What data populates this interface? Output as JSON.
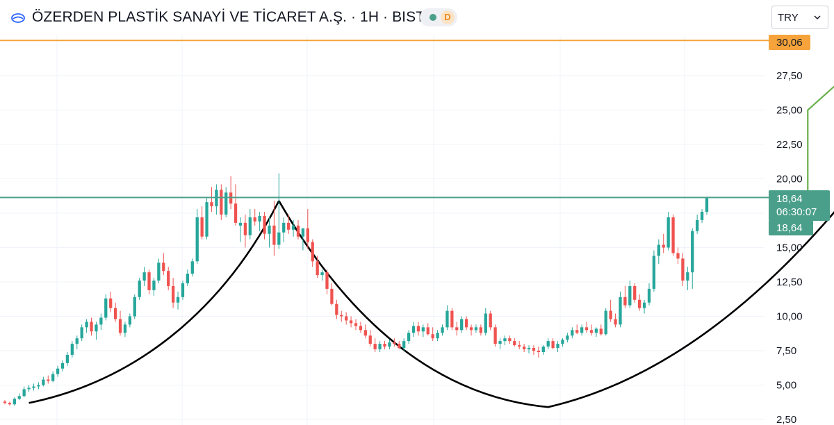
{
  "header": {
    "title": "ÖZERDEN PLASTİK SANAYİ VE TİCARET A.Ş. · 1H · BIST",
    "status_label": "D",
    "currency": "TRY"
  },
  "colors": {
    "up": "#26a69a",
    "down": "#ef5350",
    "resistance_line": "#4a9f8a",
    "target_line": "#f5a33a",
    "target_arrow": "#6ab04c",
    "pattern_curve": "#000000"
  },
  "chart_data": {
    "type": "candlestick",
    "ylim": [
      2.5,
      31.5
    ],
    "y_ticks": [
      "27,50",
      "25,00",
      "22,50",
      "20,00",
      "15,00",
      "12,50",
      "10,00",
      "7,50",
      "5,00",
      "2,50"
    ],
    "y_tick_values": [
      27.5,
      25.0,
      22.5,
      20.0,
      15.0,
      12.5,
      10.0,
      7.5,
      5.0,
      2.5
    ],
    "grid": true,
    "series": [
      {
        "candles": [
          [
            3.8,
            3.9,
            3.6,
            3.7
          ],
          [
            3.7,
            3.8,
            3.5,
            3.6
          ],
          [
            3.6,
            4.1,
            3.5,
            4.0
          ],
          [
            4.0,
            4.4,
            3.9,
            4.2
          ],
          [
            4.2,
            4.9,
            4.1,
            4.7
          ],
          [
            4.7,
            5.0,
            4.5,
            4.8
          ],
          [
            4.8,
            5.1,
            4.6,
            4.9
          ],
          [
            4.9,
            5.2,
            4.7,
            5.0
          ],
          [
            5.0,
            5.6,
            4.9,
            5.4
          ],
          [
            5.4,
            5.7,
            5.1,
            5.3
          ],
          [
            5.3,
            6.0,
            5.2,
            5.8
          ],
          [
            5.8,
            6.4,
            5.6,
            6.2
          ],
          [
            6.2,
            6.8,
            6.0,
            6.6
          ],
          [
            6.6,
            7.4,
            6.4,
            7.2
          ],
          [
            7.2,
            8.2,
            7.0,
            8.0
          ],
          [
            8.0,
            8.6,
            7.6,
            8.4
          ],
          [
            8.4,
            9.4,
            8.2,
            9.2
          ],
          [
            9.2,
            9.8,
            8.8,
            9.6
          ],
          [
            9.6,
            9.9,
            8.6,
            8.9
          ],
          [
            8.9,
            9.6,
            8.3,
            9.4
          ],
          [
            9.4,
            10.2,
            9.0,
            9.9
          ],
          [
            9.9,
            11.6,
            9.7,
            11.3
          ],
          [
            11.3,
            11.8,
            10.3,
            10.6
          ],
          [
            10.6,
            11.0,
            9.6,
            9.8
          ],
          [
            9.8,
            10.4,
            8.6,
            8.8
          ],
          [
            8.8,
            9.6,
            8.5,
            9.4
          ],
          [
            9.4,
            10.2,
            9.2,
            10.0
          ],
          [
            10.0,
            11.6,
            9.8,
            11.4
          ],
          [
            11.4,
            12.8,
            11.2,
            12.6
          ],
          [
            12.6,
            13.6,
            12.2,
            13.2
          ],
          [
            13.2,
            13.4,
            11.6,
            11.9
          ],
          [
            11.9,
            12.8,
            11.5,
            12.6
          ],
          [
            12.6,
            14.2,
            12.4,
            13.9
          ],
          [
            13.9,
            14.6,
            13.0,
            13.3
          ],
          [
            13.3,
            13.6,
            11.9,
            12.2
          ],
          [
            12.2,
            12.8,
            10.6,
            11.0
          ],
          [
            11.0,
            11.8,
            10.5,
            11.4
          ],
          [
            11.4,
            12.6,
            11.2,
            12.4
          ],
          [
            12.4,
            13.4,
            12.2,
            13.1
          ],
          [
            13.1,
            14.2,
            12.9,
            14.0
          ],
          [
            14.0,
            17.8,
            13.8,
            17.2
          ],
          [
            17.2,
            18.0,
            15.6,
            15.8
          ],
          [
            15.8,
            18.6,
            15.6,
            18.3
          ],
          [
            18.3,
            19.4,
            17.6,
            18.0
          ],
          [
            18.0,
            19.6,
            17.4,
            19.2
          ],
          [
            19.2,
            19.6,
            17.0,
            17.4
          ],
          [
            17.4,
            19.4,
            17.2,
            19.0
          ],
          [
            19.0,
            20.2,
            17.8,
            18.2
          ],
          [
            18.2,
            19.6,
            16.6,
            16.8
          ],
          [
            16.6,
            17.2,
            15.4,
            16.8
          ],
          [
            16.8,
            17.4,
            15.0,
            15.9
          ],
          [
            15.9,
            17.8,
            15.6,
            17.2
          ],
          [
            17.2,
            17.8,
            16.6,
            16.9
          ],
          [
            16.9,
            17.6,
            16.2,
            17.3
          ],
          [
            17.3,
            17.6,
            15.6,
            16.0
          ],
          [
            16.0,
            17.2,
            15.0,
            16.6
          ],
          [
            16.6,
            18.4,
            14.4,
            15.2
          ],
          [
            15.2,
            20.4,
            14.9,
            16.1
          ],
          [
            16.1,
            17.2,
            15.4,
            16.8
          ],
          [
            16.8,
            17.4,
            16.0,
            16.3
          ],
          [
            16.3,
            17.0,
            15.8,
            16.6
          ],
          [
            16.6,
            17.0,
            15.6,
            15.8
          ],
          [
            15.8,
            16.4,
            14.8,
            16.4
          ],
          [
            16.4,
            17.8,
            14.9,
            15.4
          ],
          [
            15.4,
            15.6,
            13.6,
            14.0
          ],
          [
            14.0,
            14.4,
            12.8,
            13.0
          ],
          [
            13.0,
            13.4,
            12.6,
            13.2
          ],
          [
            13.2,
            13.4,
            11.6,
            12.0
          ],
          [
            12.0,
            12.4,
            10.8,
            10.9
          ],
          [
            10.9,
            11.2,
            9.8,
            10.1
          ],
          [
            10.1,
            10.4,
            9.6,
            10.0
          ],
          [
            10.0,
            10.3,
            9.4,
            9.7
          ],
          [
            9.7,
            10.0,
            9.2,
            9.5
          ],
          [
            9.5,
            9.8,
            9.0,
            9.3
          ],
          [
            9.3,
            9.6,
            8.8,
            9.0
          ],
          [
            9.0,
            9.4,
            8.4,
            8.6
          ],
          [
            8.6,
            9.0,
            7.8,
            8.0
          ],
          [
            8.0,
            8.4,
            7.4,
            7.6
          ],
          [
            7.6,
            8.2,
            7.4,
            8.0
          ],
          [
            8.0,
            8.2,
            7.6,
            7.8
          ],
          [
            7.8,
            8.3,
            7.6,
            8.1
          ],
          [
            8.1,
            8.4,
            7.8,
            8.0
          ],
          [
            8.0,
            8.2,
            7.6,
            7.7
          ],
          [
            7.7,
            8.4,
            7.5,
            8.2
          ],
          [
            8.2,
            9.0,
            8.0,
            8.8
          ],
          [
            8.8,
            9.6,
            8.5,
            9.3
          ],
          [
            9.3,
            9.6,
            8.6,
            8.9
          ],
          [
            8.9,
            9.4,
            8.5,
            9.2
          ],
          [
            9.2,
            9.5,
            8.6,
            8.7
          ],
          [
            8.7,
            9.2,
            8.2,
            8.4
          ],
          [
            8.4,
            9.0,
            8.2,
            8.8
          ],
          [
            8.8,
            9.4,
            8.6,
            9.2
          ],
          [
            9.2,
            10.8,
            9.0,
            10.4
          ],
          [
            10.4,
            10.6,
            9.0,
            9.2
          ],
          [
            9.2,
            9.6,
            8.6,
            9.0
          ],
          [
            9.0,
            10.0,
            8.8,
            9.8
          ],
          [
            9.8,
            10.0,
            9.0,
            9.2
          ],
          [
            9.2,
            9.4,
            8.6,
            9.0
          ],
          [
            9.0,
            9.4,
            8.8,
            9.2
          ],
          [
            9.2,
            9.4,
            8.6,
            8.8
          ],
          [
            8.8,
            10.6,
            8.6,
            10.2
          ],
          [
            10.2,
            10.4,
            9.0,
            9.2
          ],
          [
            9.2,
            9.4,
            7.8,
            8.0
          ],
          [
            8.0,
            8.4,
            7.6,
            8.2
          ],
          [
            8.2,
            8.6,
            7.9,
            8.4
          ],
          [
            8.4,
            8.6,
            8.0,
            8.2
          ],
          [
            8.2,
            8.4,
            7.8,
            7.9
          ],
          [
            7.9,
            8.2,
            7.6,
            7.8
          ],
          [
            7.8,
            8.0,
            7.4,
            7.6
          ],
          [
            7.6,
            7.9,
            7.3,
            7.7
          ],
          [
            7.7,
            7.9,
            7.2,
            7.5
          ],
          [
            7.5,
            7.8,
            7.0,
            7.4
          ],
          [
            7.4,
            7.9,
            7.2,
            7.8
          ],
          [
            7.8,
            8.4,
            7.6,
            8.2
          ],
          [
            8.2,
            8.4,
            7.6,
            7.7
          ],
          [
            7.7,
            8.2,
            7.4,
            8.0
          ],
          [
            8.0,
            8.4,
            7.8,
            8.3
          ],
          [
            8.3,
            8.8,
            8.1,
            8.6
          ],
          [
            8.6,
            9.2,
            8.4,
            9.0
          ],
          [
            9.0,
            9.4,
            8.7,
            8.8
          ],
          [
            8.8,
            9.4,
            8.6,
            9.2
          ],
          [
            9.2,
            9.6,
            8.8,
            9.0
          ],
          [
            9.0,
            9.4,
            8.6,
            8.8
          ],
          [
            8.8,
            9.2,
            8.5,
            9.1
          ],
          [
            9.1,
            9.4,
            8.6,
            8.7
          ],
          [
            8.7,
            10.6,
            8.6,
            10.4
          ],
          [
            10.4,
            11.2,
            9.6,
            9.8
          ],
          [
            9.8,
            10.2,
            9.2,
            9.4
          ],
          [
            9.4,
            11.8,
            9.2,
            11.4
          ],
          [
            11.4,
            12.2,
            10.6,
            10.8
          ],
          [
            10.8,
            12.6,
            10.6,
            12.2
          ],
          [
            12.2,
            12.4,
            11.0,
            11.2
          ],
          [
            11.2,
            11.6,
            10.4,
            10.6
          ],
          [
            10.6,
            11.2,
            10.2,
            11.0
          ],
          [
            11.0,
            12.4,
            10.8,
            12.0
          ],
          [
            12.0,
            14.8,
            11.8,
            14.4
          ],
          [
            14.4,
            15.6,
            13.8,
            15.2
          ],
          [
            15.2,
            16.0,
            14.6,
            15.0
          ],
          [
            15.0,
            17.6,
            14.8,
            17.2
          ],
          [
            17.2,
            17.4,
            14.4,
            14.6
          ],
          [
            14.6,
            15.0,
            13.8,
            14.2
          ],
          [
            14.2,
            14.6,
            12.2,
            12.6
          ],
          [
            12.6,
            13.6,
            11.9,
            13.2
          ],
          [
            13.2,
            16.4,
            12.0,
            16.2
          ],
          [
            16.2,
            17.4,
            16.0,
            17.0
          ],
          [
            17.0,
            17.8,
            16.8,
            17.6
          ],
          [
            17.6,
            18.7,
            17.4,
            18.6
          ]
        ]
      }
    ],
    "annotations": {
      "resistance_level": 18.64,
      "target_level": 30.06,
      "last_price_label": "18,64",
      "countdown_label": "06:30:07",
      "bid_label": "18,64",
      "target_label": "30,06",
      "arrow_points": [
        [
          167,
          18.64
        ],
        [
          167,
          25.0
        ],
        [
          182,
          29.7
        ]
      ],
      "cup_left": [
        [
          5,
          3.7
        ],
        [
          30,
          5.5
        ],
        [
          47,
          11.5
        ],
        [
          57,
          18.4
        ]
      ],
      "cup_right": [
        [
          57,
          18.4
        ],
        [
          80,
          7.5
        ],
        [
          113,
          3.4
        ],
        [
          145,
          8.0
        ],
        [
          175,
          18.6
        ]
      ]
    }
  }
}
